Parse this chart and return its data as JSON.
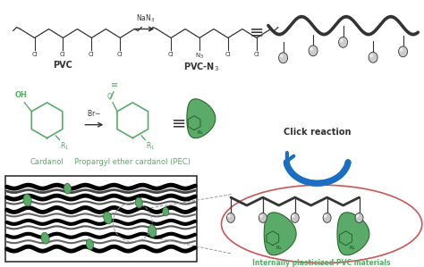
{
  "bg_color": "#ffffff",
  "green_color": "#5aaa6a",
  "dark_color": "#333333",
  "blue_color": "#1a6fc4",
  "red_color": "#cc3333",
  "gray_ball": "#aaaaaa",
  "pvc_label": "PVC",
  "pvcn3_label": "PVC-N₃",
  "nan3_label": "NaN₃",
  "cardanol_label": "Cardanol",
  "pec_label": "Propargyl ether cardanol (PEC)",
  "click_label": "Click reaction",
  "internal_label": "Internally plasticized PVC materials"
}
